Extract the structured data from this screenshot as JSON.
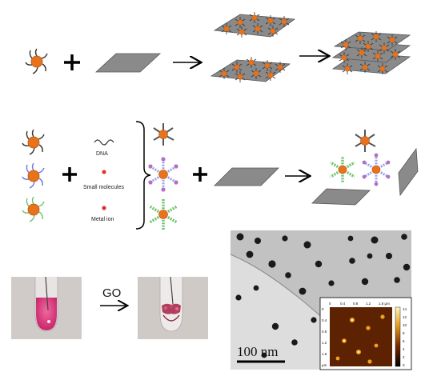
{
  "labels": {
    "dna": "DNA",
    "small_molecules": "Small molecules",
    "metal_ion": "Metal ion",
    "go": "GO",
    "scale_bar": "100 nm"
  },
  "afm": {
    "x_ticks": [
      "0",
      "0.4",
      "0.8",
      "1.2",
      "1.6 µm"
    ],
    "y_ticks": [
      "0",
      "0.4",
      "0.8",
      "1.2",
      "1.6",
      "µm"
    ],
    "colorbar_ticks": [
      "14",
      "12",
      "10",
      "8",
      "6",
      "4",
      "2",
      "0"
    ]
  },
  "colors": {
    "nanoparticle": "#e8731c",
    "sheet": "#8a8a8a",
    "ligand_dark": "#333333",
    "ligand_blue": "#6e78d8",
    "ligand_green": "#6cc46c",
    "small_molecule": "#e53030",
    "metal_ion": "#e03030"
  }
}
